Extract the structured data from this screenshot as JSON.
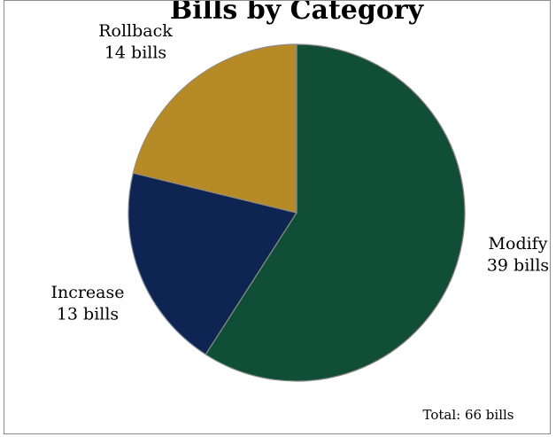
{
  "chart_data": {
    "type": "pie",
    "title": "Bills by Category",
    "slices": [
      {
        "category": "Modify",
        "value_label": "39 bills",
        "value": 39,
        "color": "#114e37"
      },
      {
        "category": "Increase",
        "value_label": "13 bills",
        "value": 13,
        "color": "#0e2452"
      },
      {
        "category": "Rollback",
        "value_label": "14 bills",
        "value": 14,
        "color": "#b78a28"
      }
    ],
    "total_label": "Total: 66 bills"
  }
}
